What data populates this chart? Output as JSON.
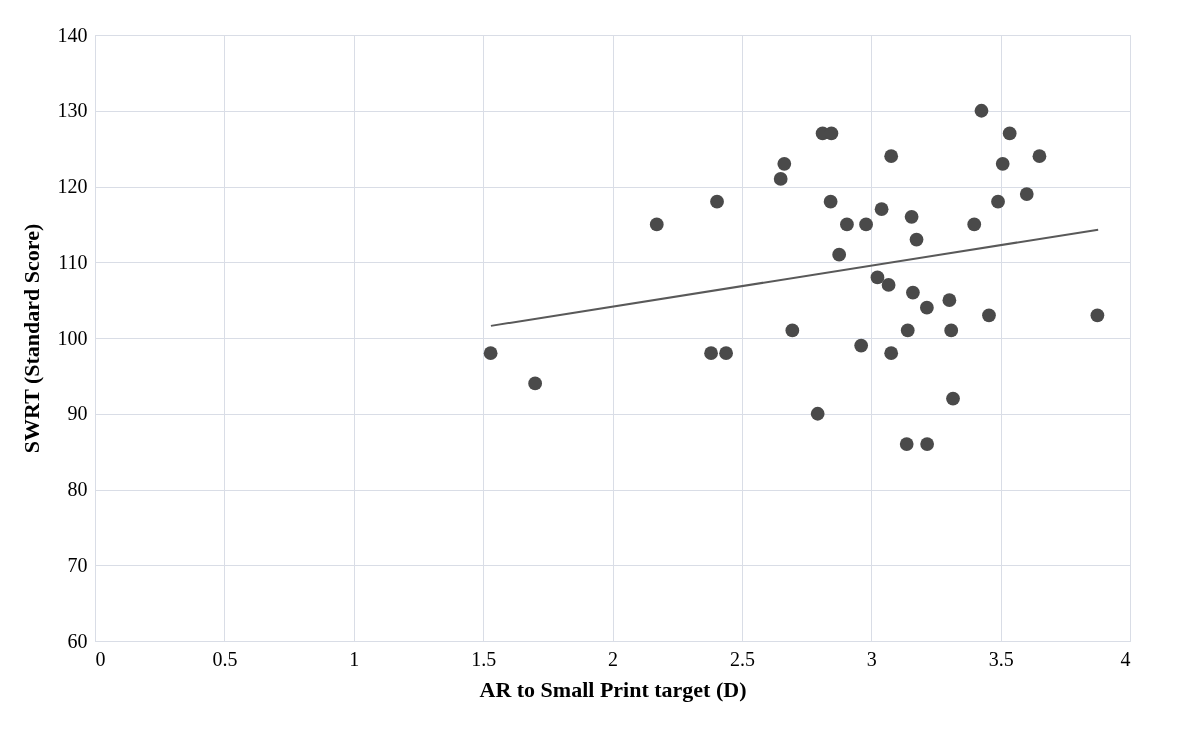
{
  "chart_data": {
    "type": "scatter",
    "xlabel": "AR to Small Print target (D)",
    "ylabel": "SWRT (Standard Score)",
    "xlim": [
      0,
      4
    ],
    "xticks": [
      0,
      0.5,
      1,
      1.5,
      2,
      2.5,
      3,
      3.5,
      4
    ],
    "ylim": [
      60,
      140
    ],
    "yticks": [
      60,
      70,
      80,
      90,
      100,
      110,
      120,
      130,
      140
    ],
    "grid": true,
    "series": [
      {
        "type": "scatter",
        "marker": "circle",
        "color": "#4a4a4a",
        "x": [
          1.529,
          1.701,
          2.171,
          2.404,
          2.381,
          2.439,
          3.426,
          3.535,
          2.812,
          2.846,
          2.664,
          2.65,
          3.077,
          3.508,
          3.65,
          2.843,
          3.49,
          3.601,
          2.906,
          2.98,
          3.04,
          3.156,
          3.398,
          3.175,
          2.876,
          3.024,
          3.067,
          3.161,
          3.215,
          3.302,
          3.455,
          3.874,
          2.695,
          3.141,
          3.309,
          2.961,
          3.077,
          3.316,
          2.793,
          3.137,
          3.216
        ],
        "values": [
          98,
          94,
          115,
          118,
          98,
          98,
          130,
          127,
          127,
          127,
          123,
          121,
          124,
          123,
          124,
          118,
          118,
          119,
          115,
          115,
          117,
          116,
          115,
          113,
          111,
          108,
          107,
          106,
          104,
          105,
          103,
          103,
          101,
          101,
          101,
          99,
          98,
          92,
          90,
          86,
          86
        ]
      },
      {
        "type": "line",
        "line_style": "solid",
        "color": "#595959",
        "x": [
          1.53,
          3.877
        ],
        "values": [
          101.6,
          114.3
        ]
      }
    ]
  }
}
